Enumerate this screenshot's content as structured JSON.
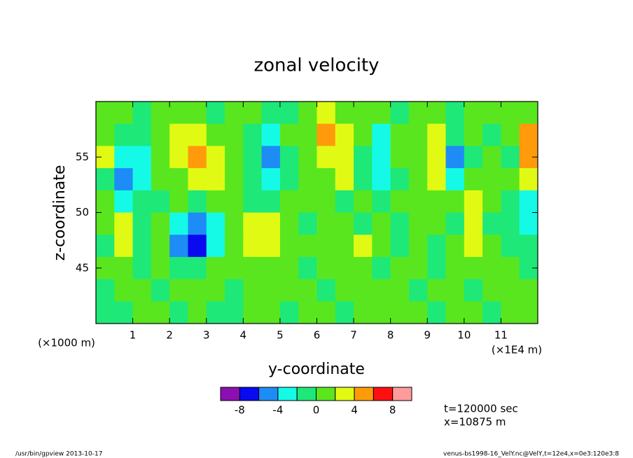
{
  "chart_data": {
    "type": "contour",
    "title": "zonal velocity",
    "x_label": "y-coordinate",
    "y_label": "z-coordinate",
    "x_unit": "(×1E4 m)",
    "y_unit": "(×1000 m)",
    "annotations": [
      "t=120000 sec",
      "x=10875 m"
    ],
    "footer_left": "/usr/bin/gpview  2013-10-17",
    "footer_right": "venus-bs1998-16_VelY.nc@VelY,t=12e4,x=0e3:120e3:8",
    "xlim": [
      0,
      12
    ],
    "ylim": [
      40,
      60
    ],
    "xticks": [
      1,
      2,
      3,
      4,
      5,
      6,
      7,
      8,
      9,
      10,
      11
    ],
    "yticks": [
      45,
      50,
      55
    ],
    "x": [
      0.25,
      0.75,
      1.25,
      1.75,
      2.25,
      2.75,
      3.25,
      3.75,
      4.25,
      4.75,
      5.25,
      5.75,
      6.25,
      6.75,
      7.25,
      7.75,
      8.25,
      8.75,
      9.25,
      9.75,
      10.25,
      10.75,
      11.25,
      11.75
    ],
    "y": [
      59,
      57,
      55,
      53,
      51,
      49,
      47,
      45,
      43,
      41
    ],
    "values": [
      [
        1,
        1,
        -1,
        1,
        1,
        1,
        -1,
        1,
        1,
        -1,
        -1,
        1,
        3,
        1,
        1,
        1,
        -1,
        1,
        1,
        -1,
        1,
        1,
        1,
        1
      ],
      [
        1,
        -1,
        -1,
        1,
        3,
        3,
        1,
        1,
        -1,
        -3,
        1,
        1,
        5,
        3,
        1,
        -3,
        1,
        1,
        3,
        -1,
        1,
        -1,
        1,
        5
      ],
      [
        3,
        -3,
        -3,
        1,
        3,
        5,
        3,
        1,
        -1,
        -5,
        -1,
        1,
        3,
        3,
        -1,
        -3,
        1,
        1,
        3,
        -5,
        -1,
        1,
        -1,
        5
      ],
      [
        -1,
        -5,
        -3,
        1,
        1,
        3,
        3,
        1,
        -1,
        -3,
        -1,
        1,
        1,
        3,
        -1,
        -3,
        -1,
        1,
        3,
        -3,
        1,
        1,
        1,
        3
      ],
      [
        1,
        -3,
        -1,
        -1,
        1,
        -1,
        1,
        1,
        -1,
        -1,
        1,
        1,
        1,
        -1,
        1,
        -1,
        1,
        1,
        1,
        1,
        3,
        1,
        -1,
        -3
      ],
      [
        1,
        3,
        -1,
        1,
        -3,
        -5,
        -3,
        1,
        3,
        3,
        1,
        -1,
        1,
        1,
        -1,
        1,
        -1,
        1,
        1,
        -1,
        3,
        -1,
        -1,
        -3
      ],
      [
        -1,
        3,
        -1,
        1,
        -5,
        -7,
        -3,
        1,
        3,
        3,
        1,
        1,
        1,
        1,
        3,
        1,
        -1,
        1,
        -1,
        1,
        3,
        1,
        -1,
        -1
      ],
      [
        1,
        1,
        -1,
        1,
        -1,
        -1,
        1,
        1,
        1,
        1,
        1,
        -1,
        1,
        1,
        1,
        -1,
        1,
        1,
        -1,
        1,
        1,
        1,
        1,
        -1
      ],
      [
        -1,
        1,
        1,
        -1,
        1,
        1,
        1,
        -1,
        1,
        1,
        1,
        1,
        -1,
        1,
        1,
        1,
        1,
        -1,
        1,
        1,
        -1,
        1,
        1,
        1
      ],
      [
        -1,
        -1,
        1,
        1,
        -1,
        1,
        -1,
        -1,
        1,
        1,
        -1,
        1,
        1,
        -1,
        1,
        1,
        1,
        1,
        -1,
        1,
        1,
        -1,
        1,
        1
      ]
    ],
    "levels": [
      -10,
      -8,
      -6,
      -4,
      -2,
      0,
      2,
      4,
      6,
      8,
      10
    ],
    "colors": [
      "#8c0fb4",
      "#0a0af0",
      "#1e8cf5",
      "#14fae6",
      "#1ee878",
      "#5ae61e",
      "#e1fa14",
      "#ff9b0a",
      "#ff1010",
      "#ff9b9b"
    ],
    "colorbar_ticks": [
      -8,
      -4,
      0,
      4,
      8
    ]
  }
}
